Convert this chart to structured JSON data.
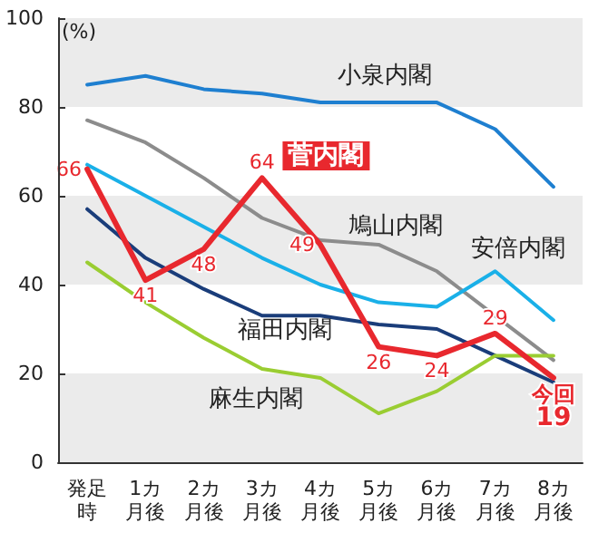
{
  "chart_data": {
    "type": "line",
    "ylabel": "(%)",
    "categories": [
      "発足時",
      "1カ月後",
      "2カ月後",
      "3カ月後",
      "4カ月後",
      "5カ月後",
      "6カ月後",
      "7カ月後",
      "8カ月後"
    ],
    "series": [
      {
        "name": "小泉内閣",
        "color": "#1e7fd0",
        "values": [
          85,
          87,
          84,
          83,
          81,
          81,
          81,
          75,
          62
        ]
      },
      {
        "name": "鳩山内閣",
        "color": "#8c8c8c",
        "values": [
          77,
          72,
          64,
          55,
          50,
          49,
          43,
          33,
          23
        ]
      },
      {
        "name": "安倍内閣",
        "color": "#1ab0e8",
        "values": [
          67,
          60,
          53,
          46,
          40,
          36,
          35,
          43,
          32
        ]
      },
      {
        "name": "福田内閣",
        "color": "#1a3d7a",
        "values": [
          57,
          46,
          39,
          33,
          33,
          31,
          30,
          24,
          18
        ]
      },
      {
        "name": "麻生内閣",
        "color": "#9acd32",
        "values": [
          45,
          36,
          28,
          21,
          19,
          11,
          16,
          24,
          24
        ]
      },
      {
        "name": "菅内閣",
        "color": "#e8282e",
        "values": [
          66,
          41,
          48,
          64,
          49,
          26,
          24,
          29,
          19
        ],
        "value_labels": [
          "66",
          "41",
          "48",
          "64",
          "49",
          "26",
          "24",
          "29",
          "19"
        ]
      }
    ],
    "annotations": [
      {
        "text": "今回",
        "x": "8カ月後",
        "y": 19
      }
    ],
    "ylim": [
      0,
      100
    ],
    "yticks": [
      0,
      20,
      40,
      60,
      80,
      100
    ],
    "bands": [
      {
        "axis": "y",
        "from": 0,
        "to": 20,
        "color": "#ebebeb"
      },
      {
        "axis": "y",
        "from": 40,
        "to": 60,
        "color": "#ebebeb"
      },
      {
        "axis": "y",
        "from": 80,
        "to": 100,
        "color": "#ebebeb"
      }
    ],
    "legend": false,
    "grid": false,
    "marker": "none",
    "line_style": "solid"
  }
}
